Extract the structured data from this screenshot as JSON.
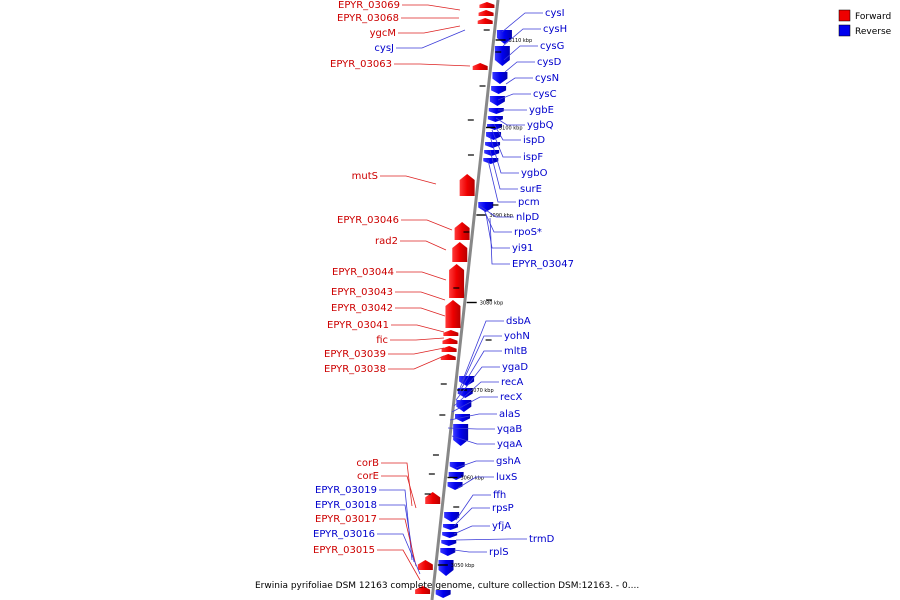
{
  "legend": {
    "items": [
      {
        "label": "Forward",
        "color": "#ee0000"
      },
      {
        "label": "Reverse",
        "color": "#0000ee"
      }
    ]
  },
  "caption": "Erwinia pyrifoliae DSM 12163 complete genome, culture collection DSM:12163. - 0....",
  "axis": {
    "unit": "kbp",
    "ticks": [
      {
        "kbp": 3110,
        "label": "3110 kbp"
      },
      {
        "kbp": 3100,
        "label": "3100 kbp"
      },
      {
        "kbp": 3090,
        "label": "3090 kbp"
      },
      {
        "kbp": 3080,
        "label": "3080 kbp"
      },
      {
        "kbp": 3070,
        "label": "3070 kbp"
      },
      {
        "kbp": 3060,
        "label": "3060 kbp"
      },
      {
        "kbp": 3050,
        "label": "3050 kbp"
      }
    ]
  },
  "genes_forward": [
    {
      "name": "EPYR_03069"
    },
    {
      "name": "EPYR_03068"
    },
    {
      "name": "ygcM"
    },
    {
      "name": "cysJ",
      "strand": "reverse"
    },
    {
      "name": "EPYR_03063"
    },
    {
      "name": "mutS"
    },
    {
      "name": "EPYR_03046"
    },
    {
      "name": "rad2"
    },
    {
      "name": "EPYR_03044"
    },
    {
      "name": "EPYR_03043"
    },
    {
      "name": "EPYR_03042"
    },
    {
      "name": "EPYR_03041"
    },
    {
      "name": "fic"
    },
    {
      "name": "EPYR_03039"
    },
    {
      "name": "EPYR_03038"
    },
    {
      "name": "corB"
    },
    {
      "name": "corE"
    },
    {
      "name": "EPYR_03019",
      "strand": "reverse"
    },
    {
      "name": "EPYR_03018",
      "strand": "reverse"
    },
    {
      "name": "EPYR_03017"
    },
    {
      "name": "EPYR_03016",
      "strand": "reverse"
    },
    {
      "name": "EPYR_03015"
    }
  ],
  "genes_reverse": [
    {
      "name": "cysI"
    },
    {
      "name": "cysH"
    },
    {
      "name": "cysG"
    },
    {
      "name": "cysD"
    },
    {
      "name": "cysN"
    },
    {
      "name": "cysC"
    },
    {
      "name": "ygbE"
    },
    {
      "name": "ygbQ"
    },
    {
      "name": "ispD"
    },
    {
      "name": "ispF"
    },
    {
      "name": "ygbO"
    },
    {
      "name": "surE"
    },
    {
      "name": "pcm"
    },
    {
      "name": "nlpD"
    },
    {
      "name": "rpoS*"
    },
    {
      "name": "yi91"
    },
    {
      "name": "EPYR_03047"
    },
    {
      "name": "dsbA"
    },
    {
      "name": "yohN"
    },
    {
      "name": "mltB"
    },
    {
      "name": "ygaD"
    },
    {
      "name": "recA"
    },
    {
      "name": "recX"
    },
    {
      "name": "alaS"
    },
    {
      "name": "yqaB"
    },
    {
      "name": "yqaA"
    },
    {
      "name": "gshA"
    },
    {
      "name": "luxS"
    },
    {
      "name": "ffh"
    },
    {
      "name": "rpsP"
    },
    {
      "name": "yfjA"
    },
    {
      "name": "trmD"
    },
    {
      "name": "rplS"
    }
  ]
}
